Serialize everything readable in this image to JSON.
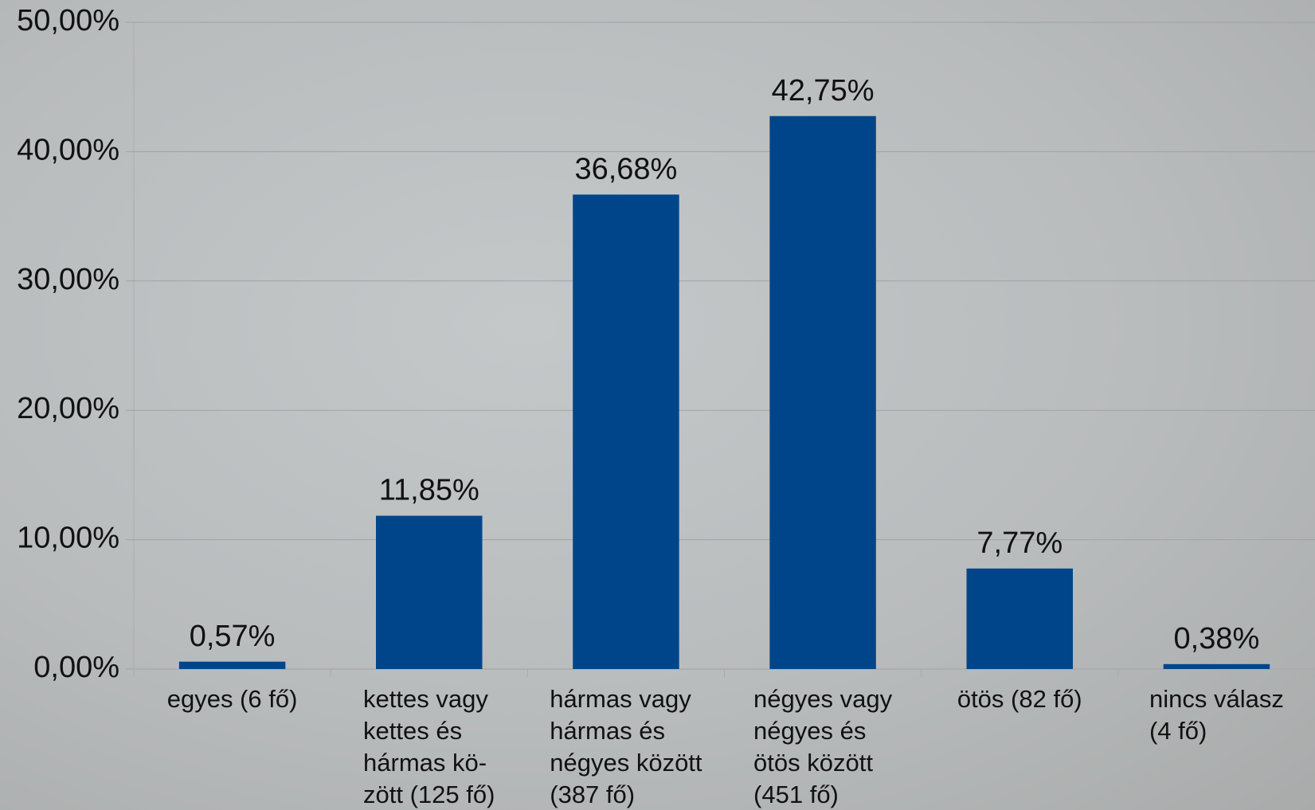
{
  "chart_data": {
    "type": "bar",
    "categories": [
      "egyes (6 fő)",
      "kettes vagy\nkettes és\nhármas kö-\nzött (125 fő)",
      "hármas vagy\nhármas és\nnégyes között\n(387 fő)",
      "négyes vagy\nnégyes és\nötös között\n(451 fő)",
      "ötös (82 fő)",
      "nincs válasz\n(4 fő)"
    ],
    "values": [
      0.57,
      11.85,
      36.68,
      42.75,
      7.77,
      0.38
    ],
    "value_labels": [
      "0,57%",
      "11,85%",
      "36,68%",
      "42,75%",
      "7,77%",
      "0,38%"
    ],
    "color": "#00458a",
    "ylim": [
      0,
      50
    ],
    "yticks": [
      {
        "value": 0,
        "label": "0,00%"
      },
      {
        "value": 10,
        "label": "10,00%"
      },
      {
        "value": 20,
        "label": "20,00%"
      },
      {
        "value": 30,
        "label": "30,00%"
      },
      {
        "value": 40,
        "label": "40,00%"
      },
      {
        "value": 50,
        "label": "50,00%"
      }
    ],
    "grid": true
  }
}
